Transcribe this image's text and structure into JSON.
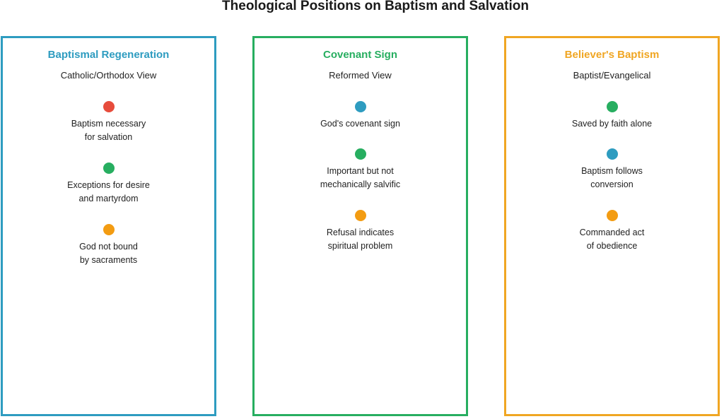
{
  "title": "Theological Positions on Baptism and Salvation",
  "columns": [
    {
      "heading": "Baptismal Regeneration",
      "subheading": "Catholic/Orthodox View",
      "color": "#2e9cc0",
      "points": [
        {
          "text": "Baptism necessary\nfor salvation",
          "dot_color": "#e74c3c",
          "dot_icon": "red-circle-icon"
        },
        {
          "text": "Exceptions for desire\nand martyrdom",
          "dot_color": "#27ae60",
          "dot_icon": "green-circle-icon"
        },
        {
          "text": "God not bound\nby sacraments",
          "dot_color": "#f39c12",
          "dot_icon": "orange-circle-icon"
        }
      ]
    },
    {
      "heading": "Covenant Sign",
      "subheading": "Reformed View",
      "color": "#27ae60",
      "points": [
        {
          "text": "God's covenant sign",
          "dot_color": "#2e9cc0",
          "dot_icon": "blue-circle-icon"
        },
        {
          "text": "Important but not\nmechanically salvific",
          "dot_color": "#27ae60",
          "dot_icon": "green-circle-icon"
        },
        {
          "text": "Refusal indicates\nspiritual problem",
          "dot_color": "#f39c12",
          "dot_icon": "orange-circle-icon"
        }
      ]
    },
    {
      "heading": "Believer's Baptism",
      "subheading": "Baptist/Evangelical",
      "color": "#f0a623",
      "points": [
        {
          "text": "Saved by faith alone",
          "dot_color": "#27ae60",
          "dot_icon": "green-circle-icon"
        },
        {
          "text": "Baptism follows\nconversion",
          "dot_color": "#2e9cc0",
          "dot_icon": "blue-circle-icon"
        },
        {
          "text": "Commanded act\nof obedience",
          "dot_color": "#f39c12",
          "dot_icon": "orange-circle-icon"
        }
      ]
    }
  ]
}
